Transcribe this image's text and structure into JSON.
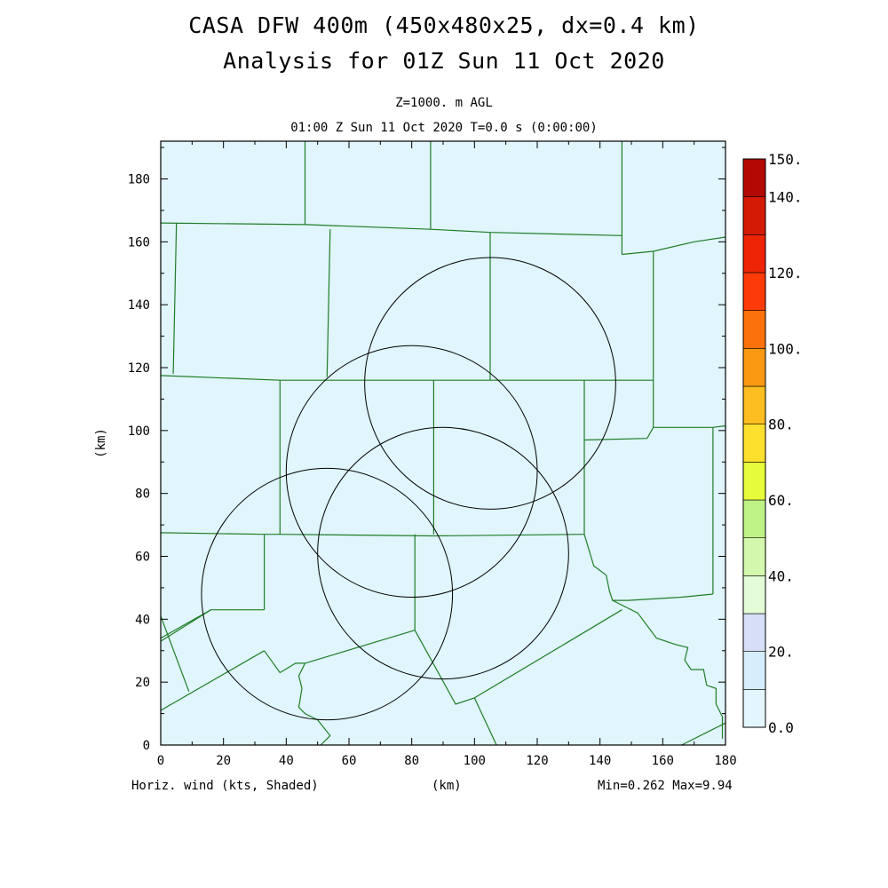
{
  "header": {
    "title_line1": "CASA DFW 400m (450x480x25, dx=0.4 km)",
    "title_line2": "Analysis for 01Z Sun 11 Oct 2020",
    "level": "Z=1000. m AGL",
    "time": "01:00 Z Sun 11 Oct 2020   T=0.0 s (0:00:00)"
  },
  "footer": {
    "field": "Horiz. wind (kts, Shaded)",
    "xunit": "(km)",
    "minmax": "Min=0.262 Max=9.94"
  },
  "chart_data": {
    "type": "heatmap",
    "xlabel": "(km)",
    "ylabel": "(km)",
    "xlim": [
      0,
      180
    ],
    "ylim": [
      0,
      192
    ],
    "xticks": [
      0,
      20,
      40,
      60,
      80,
      100,
      120,
      140,
      160,
      180
    ],
    "yticks": [
      0,
      20,
      40,
      60,
      80,
      100,
      120,
      140,
      160,
      180
    ],
    "field_fill_color": "#e0f5fc",
    "field_min": 0.262,
    "field_max": 9.94,
    "radar_range_rings": [
      {
        "center": [
          53,
          48
        ],
        "radius_km": 40
      },
      {
        "center": [
          80,
          87
        ],
        "radius_km": 40
      },
      {
        "center": [
          90,
          61
        ],
        "radius_km": 40
      },
      {
        "center": [
          105,
          115
        ],
        "radius_km": 40
      }
    ],
    "county_boundaries": [
      [
        [
          0,
          166
        ],
        [
          46,
          165.5
        ],
        [
          86,
          164
        ],
        [
          105,
          163
        ],
        [
          147,
          162
        ]
      ],
      [
        [
          46,
          192
        ],
        [
          46,
          165.5
        ]
      ],
      [
        [
          86,
          192
        ],
        [
          86,
          164
        ]
      ],
      [
        [
          147,
          192
        ],
        [
          147,
          156
        ]
      ],
      [
        [
          147,
          156
        ],
        [
          157,
          157
        ],
        [
          170,
          160
        ],
        [
          180,
          161.5
        ]
      ],
      [
        [
          5,
          166
        ],
        [
          4,
          118
        ]
      ],
      [
        [
          54,
          164
        ],
        [
          53,
          117
        ]
      ],
      [
        [
          105,
          163
        ],
        [
          105,
          116
        ]
      ],
      [
        [
          0,
          117.5
        ],
        [
          38,
          116
        ],
        [
          105,
          116
        ],
        [
          157,
          116
        ]
      ],
      [
        [
          157,
          157
        ],
        [
          157,
          101
        ]
      ],
      [
        [
          157,
          101
        ],
        [
          176,
          101
        ],
        [
          180,
          101.5
        ]
      ],
      [
        [
          38,
          116
        ],
        [
          38,
          67
        ]
      ],
      [
        [
          87,
          116
        ],
        [
          87,
          67
        ]
      ],
      [
        [
          135,
          116
        ],
        [
          135,
          97
        ]
      ],
      [
        [
          135,
          97
        ],
        [
          155,
          97.5
        ],
        [
          157,
          101
        ]
      ],
      [
        [
          0,
          67.5
        ],
        [
          33,
          67
        ],
        [
          38,
          67
        ],
        [
          87,
          66.5
        ],
        [
          135,
          67
        ]
      ],
      [
        [
          135,
          97
        ],
        [
          135,
          67
        ]
      ],
      [
        [
          176,
          101
        ],
        [
          176,
          48
        ]
      ],
      [
        [
          33,
          67
        ],
        [
          33,
          43
        ]
      ],
      [
        [
          0,
          34
        ],
        [
          16,
          43
        ],
        [
          33,
          43
        ]
      ],
      [
        [
          16,
          43
        ],
        [
          0,
          33
        ]
      ],
      [
        [
          0,
          41
        ],
        [
          9,
          17
        ]
      ],
      [
        [
          0,
          11
        ],
        [
          33,
          30
        ]
      ],
      [
        [
          33,
          30
        ],
        [
          38,
          23
        ],
        [
          43,
          26
        ],
        [
          46,
          26
        ],
        [
          81,
          36.5
        ]
      ],
      [
        [
          81,
          67
        ],
        [
          81,
          36.5
        ],
        [
          94,
          13
        ],
        [
          100,
          15
        ]
      ],
      [
        [
          100,
          15
        ],
        [
          147,
          43
        ]
      ],
      [
        [
          135,
          67
        ],
        [
          138,
          57
        ],
        [
          142,
          54
        ],
        [
          143,
          49
        ],
        [
          144,
          46
        ],
        [
          149,
          46
        ],
        [
          166,
          47
        ],
        [
          176,
          48
        ]
      ],
      [
        [
          144,
          46
        ],
        [
          152,
          42
        ],
        [
          158,
          34
        ],
        [
          164,
          32
        ],
        [
          168,
          31
        ],
        [
          167,
          27
        ],
        [
          169,
          24
        ],
        [
          173,
          24
        ],
        [
          174,
          19
        ],
        [
          177,
          18
        ],
        [
          177,
          13
        ],
        [
          179,
          9
        ],
        [
          179,
          2
        ]
      ],
      [
        [
          100,
          15
        ],
        [
          107,
          0
        ]
      ],
      [
        [
          46,
          26
        ],
        [
          44,
          22
        ],
        [
          45,
          18
        ],
        [
          44,
          12
        ],
        [
          46,
          10
        ],
        [
          50,
          8
        ],
        [
          54,
          3
        ],
        [
          51,
          0
        ]
      ],
      [
        [
          166,
          0
        ],
        [
          180,
          7
        ]
      ]
    ]
  },
  "colorbar": {
    "labels": [
      {
        "v": 0,
        "text": "0.0"
      },
      {
        "v": 20,
        "text": "20."
      },
      {
        "v": 40,
        "text": "40."
      },
      {
        "v": 60,
        "text": "60."
      },
      {
        "v": 80,
        "text": "80."
      },
      {
        "v": 100,
        "text": "100."
      },
      {
        "v": 120,
        "text": "120."
      },
      {
        "v": 140,
        "text": "140."
      },
      {
        "v": 150,
        "text": "150."
      }
    ],
    "bins": [
      {
        "from": 0,
        "to": 10,
        "color": "#e3f6fd"
      },
      {
        "from": 10,
        "to": 20,
        "color": "#d6eefc"
      },
      {
        "from": 20,
        "to": 30,
        "color": "#d7dff7"
      },
      {
        "from": 30,
        "to": 40,
        "color": "#e3fbd7"
      },
      {
        "from": 40,
        "to": 50,
        "color": "#d2f7ad"
      },
      {
        "from": 50,
        "to": 60,
        "color": "#bff287"
      },
      {
        "from": 60,
        "to": 70,
        "color": "#e6fb3a"
      },
      {
        "from": 70,
        "to": 80,
        "color": "#fde02e"
      },
      {
        "from": 80,
        "to": 90,
        "color": "#fcbe20"
      },
      {
        "from": 90,
        "to": 100,
        "color": "#fb9a12"
      },
      {
        "from": 100,
        "to": 110,
        "color": "#fb720c"
      },
      {
        "from": 110,
        "to": 120,
        "color": "#fc3b08"
      },
      {
        "from": 120,
        "to": 130,
        "color": "#ed2405"
      },
      {
        "from": 130,
        "to": 140,
        "color": "#d41a03"
      },
      {
        "from": 140,
        "to": 150,
        "color": "#b20a02"
      }
    ]
  },
  "colors": {
    "county": "#1f7d28",
    "ring": "#000000",
    "frame": "#000000"
  }
}
